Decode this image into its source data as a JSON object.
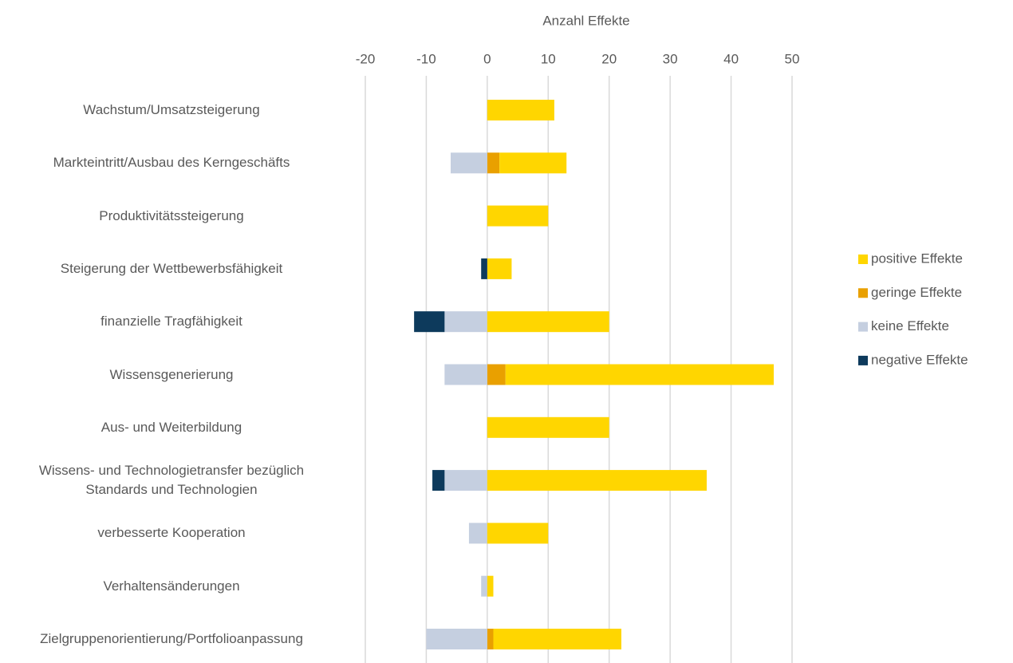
{
  "chart_data": {
    "type": "bar",
    "orientation": "horizontal",
    "stacked": true,
    "title": "Anzahl Effekte",
    "categories": [
      "Wachstum/Umsatzsteigerung",
      "Markteintritt/Ausbau des Kerngeschäfts",
      "Produktivitätssteigerung",
      "Steigerung der Wettbewerbsfähigkeit",
      "finanzielle Tragfähigkeit",
      "Wissensgenerierung",
      "Aus- und Weiterbildung",
      "Wissens- und Technologietransfer bezüglich\nStandards und Technologien",
      "verbesserte Kooperation",
      "Verhaltensänderungen",
      "Zielgruppenorientierung/Portfolioanpassung"
    ],
    "series": [
      {
        "name": "positive Effekte",
        "color": "#ffd600",
        "values": [
          11,
          11,
          10,
          4,
          20,
          44,
          20,
          36,
          10,
          1,
          21
        ]
      },
      {
        "name": "geringe Effekte",
        "color": "#e9a000",
        "values": [
          0,
          2,
          0,
          0,
          0,
          3,
          0,
          0,
          0,
          0,
          1
        ]
      },
      {
        "name": "keine Effekte",
        "color": "#c5cfe0",
        "values": [
          0,
          -6,
          0,
          0,
          -7,
          -7,
          0,
          -7,
          -3,
          -1,
          -10
        ]
      },
      {
        "name": "negative Effekte",
        "color": "#0d3a5c",
        "values": [
          0,
          0,
          0,
          -1,
          -5,
          0,
          0,
          -2,
          0,
          0,
          0
        ]
      }
    ],
    "xlim": [
      -20,
      50
    ],
    "xticks": [
      -20,
      -10,
      0,
      10,
      20,
      30,
      40,
      50
    ],
    "grid": true,
    "legend": "right"
  }
}
